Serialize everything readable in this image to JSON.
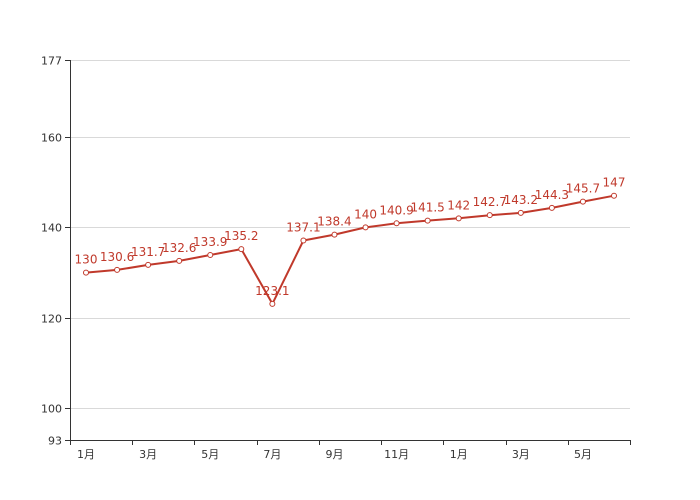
{
  "chart_data": {
    "type": "line",
    "x_tick_labels": [
      "1月",
      "3月",
      "5月",
      "7月",
      "9月",
      "11月",
      "1月",
      "3月",
      "5月"
    ],
    "y_ticks": [
      93,
      100,
      120,
      140,
      160,
      177
    ],
    "ylim": [
      93,
      177
    ],
    "grid": true,
    "series": [
      {
        "color": "#c0392b",
        "values": [
          130,
          130.6,
          131.7,
          132.6,
          133.9,
          135.2,
          123.1,
          137.1,
          138.4,
          140,
          140.9,
          141.5,
          142,
          142.7,
          143.2,
          144.3,
          145.7,
          147
        ],
        "labels": [
          "130",
          "130.6",
          "131.7",
          "132.6",
          "133.9",
          "135.2",
          "123.1",
          "137.1",
          "138.4",
          "140",
          "140.9",
          "141.5",
          "142",
          "142.7",
          "143.2",
          "144.3",
          "145.7",
          "147"
        ]
      }
    ],
    "colors": {
      "line": "#c0392b",
      "grid": "#d9d9d9",
      "axis": "#333333"
    }
  }
}
